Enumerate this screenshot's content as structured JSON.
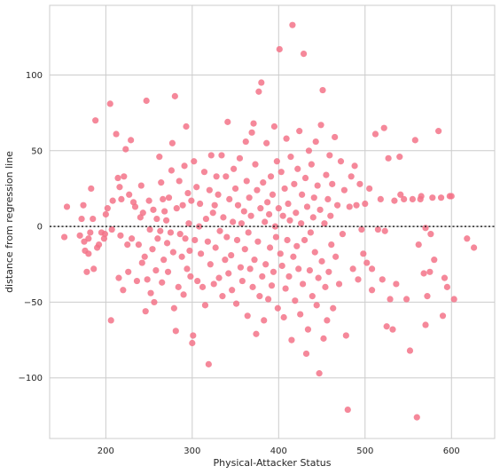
{
  "chart_data": {
    "type": "scatter",
    "title": "",
    "xlabel": "Physical-Attacker Status",
    "ylabel": "distance from regression line",
    "xlim": [
      135,
      650
    ],
    "ylim": [
      -140,
      146
    ],
    "xticks": [
      200,
      300,
      400,
      500,
      600
    ],
    "yticks": [
      -100,
      -50,
      0,
      50,
      100
    ],
    "xtick_labels": [
      "200",
      "300",
      "400",
      "500",
      "600"
    ],
    "ytick_labels": [
      "−100",
      "−50",
      "0",
      "50",
      "100"
    ],
    "grid": true,
    "reference_line": {
      "y": 0,
      "style": "dotted",
      "color": "#262626"
    },
    "point_color": "#f37388",
    "points": [
      [
        152,
        -7
      ],
      [
        155,
        13
      ],
      [
        170,
        -6
      ],
      [
        172,
        5
      ],
      [
        174,
        14
      ],
      [
        175,
        -10
      ],
      [
        176,
        -16
      ],
      [
        178,
        -30
      ],
      [
        180,
        -18
      ],
      [
        180,
        -8
      ],
      [
        182,
        -4
      ],
      [
        183,
        25
      ],
      [
        185,
        5
      ],
      [
        186,
        -28
      ],
      [
        188,
        70
      ],
      [
        190,
        -14
      ],
      [
        192,
        -12
      ],
      [
        195,
        -4
      ],
      [
        198,
        -8
      ],
      [
        199,
        -5
      ],
      [
        200,
        8
      ],
      [
        202,
        12
      ],
      [
        205,
        81
      ],
      [
        206,
        -62
      ],
      [
        207,
        -2
      ],
      [
        208,
        17
      ],
      [
        212,
        61
      ],
      [
        214,
        32
      ],
      [
        215,
        -34
      ],
      [
        216,
        26
      ],
      [
        217,
        -6
      ],
      [
        218,
        18
      ],
      [
        220,
        -42
      ],
      [
        221,
        33
      ],
      [
        223,
        51
      ],
      [
        225,
        -12
      ],
      [
        226,
        -30
      ],
      [
        227,
        21
      ],
      [
        229,
        57
      ],
      [
        230,
        -8
      ],
      [
        232,
        16
      ],
      [
        234,
        13
      ],
      [
        236,
        -36
      ],
      [
        238,
        -12
      ],
      [
        240,
        6
      ],
      [
        241,
        27
      ],
      [
        242,
        -24
      ],
      [
        243,
        9
      ],
      [
        245,
        -20
      ],
      [
        246,
        -56
      ],
      [
        247,
        83
      ],
      [
        248,
        -35
      ],
      [
        250,
        17
      ],
      [
        251,
        -2
      ],
      [
        252,
        -44
      ],
      [
        254,
        -15
      ],
      [
        255,
        11
      ],
      [
        256,
        -50
      ],
      [
        258,
        -29
      ],
      [
        259,
        5
      ],
      [
        260,
        -8
      ],
      [
        262,
        46
      ],
      [
        263,
        -3
      ],
      [
        264,
        29
      ],
      [
        265,
        -37
      ],
      [
        266,
        18
      ],
      [
        267,
        -22
      ],
      [
        268,
        10
      ],
      [
        270,
        4
      ],
      [
        271,
        -11
      ],
      [
        272,
        -30
      ],
      [
        273,
        19
      ],
      [
        275,
        -4
      ],
      [
        276,
        37
      ],
      [
        277,
        55
      ],
      [
        278,
        -17
      ],
      [
        279,
        -54
      ],
      [
        280,
        86
      ],
      [
        281,
        -69
      ],
      [
        282,
        12
      ],
      [
        284,
        -40
      ],
      [
        285,
        30
      ],
      [
        286,
        -5
      ],
      [
        288,
        -20
      ],
      [
        289,
        14
      ],
      [
        290,
        -45
      ],
      [
        291,
        40
      ],
      [
        292,
        -8
      ],
      [
        293,
        66
      ],
      [
        294,
        -28
      ],
      [
        295,
        22
      ],
      [
        296,
        2
      ],
      [
        297,
        -16
      ],
      [
        298,
        -33
      ],
      [
        299,
        17
      ],
      [
        300,
        -77
      ],
      [
        301,
        -72
      ],
      [
        302,
        43
      ],
      [
        303,
        -9
      ],
      [
        305,
        26
      ],
      [
        306,
        -36
      ],
      [
        308,
        0
      ],
      [
        309,
        15
      ],
      [
        310,
        -18
      ],
      [
        312,
        -40
      ],
      [
        314,
        36
      ],
      [
        315,
        -52
      ],
      [
        316,
        5
      ],
      [
        318,
        -10
      ],
      [
        319,
        -91
      ],
      [
        320,
        24
      ],
      [
        321,
        -25
      ],
      [
        322,
        47
      ],
      [
        324,
        9
      ],
      [
        325,
        -38
      ],
      [
        326,
        14
      ],
      [
        327,
        -14
      ],
      [
        328,
        33
      ],
      [
        330,
        21
      ],
      [
        331,
        -34
      ],
      [
        332,
        -3
      ],
      [
        334,
        47
      ],
      [
        335,
        -46
      ],
      [
        336,
        6
      ],
      [
        338,
        -22
      ],
      [
        339,
        33
      ],
      [
        340,
        -7
      ],
      [
        341,
        69
      ],
      [
        342,
        -31
      ],
      [
        343,
        18
      ],
      [
        345,
        -19
      ],
      [
        346,
        -42
      ],
      [
        347,
        3
      ],
      [
        348,
        38
      ],
      [
        350,
        25
      ],
      [
        351,
        -51
      ],
      [
        352,
        -9
      ],
      [
        353,
        14
      ],
      [
        355,
        45
      ],
      [
        356,
        -27
      ],
      [
        357,
        2
      ],
      [
        358,
        -36
      ],
      [
        360,
        10
      ],
      [
        361,
        -15
      ],
      [
        362,
        56
      ],
      [
        363,
        30
      ],
      [
        364,
        -59
      ],
      [
        365,
        -4
      ],
      [
        366,
        19
      ],
      [
        367,
        -28
      ],
      [
        368,
        7
      ],
      [
        369,
        62
      ],
      [
        370,
        -40
      ],
      [
        371,
        68
      ],
      [
        372,
        -22
      ],
      [
        373,
        41
      ],
      [
        374,
        -71
      ],
      [
        375,
        24
      ],
      [
        376,
        -10
      ],
      [
        377,
        89
      ],
      [
        378,
        -46
      ],
      [
        379,
        12
      ],
      [
        380,
        95
      ],
      [
        381,
        -33
      ],
      [
        382,
        29
      ],
      [
        383,
        -62
      ],
      [
        384,
        3
      ],
      [
        385,
        -25
      ],
      [
        386,
        55
      ],
      [
        387,
        16
      ],
      [
        388,
        -48
      ],
      [
        389,
        8
      ],
      [
        390,
        -14
      ],
      [
        391,
        33
      ],
      [
        392,
        -39
      ],
      [
        393,
        21
      ],
      [
        394,
        -30
      ],
      [
        395,
        66
      ],
      [
        396,
        0
      ],
      [
        397,
        -7
      ],
      [
        398,
        43
      ],
      [
        399,
        -54
      ],
      [
        400,
        12
      ],
      [
        401,
        117
      ],
      [
        402,
        -18
      ],
      [
        403,
        36
      ],
      [
        404,
        -26
      ],
      [
        405,
        7
      ],
      [
        406,
        -60
      ],
      [
        407,
        25
      ],
      [
        408,
        -41
      ],
      [
        409,
        58
      ],
      [
        410,
        -9
      ],
      [
        411,
        15
      ],
      [
        412,
        -33
      ],
      [
        413,
        4
      ],
      [
        414,
        46
      ],
      [
        415,
        -75
      ],
      [
        416,
        133
      ],
      [
        417,
        -20
      ],
      [
        418,
        28
      ],
      [
        419,
        -49
      ],
      [
        420,
        9
      ],
      [
        421,
        -13
      ],
      [
        422,
        38
      ],
      [
        423,
        -28
      ],
      [
        424,
        63
      ],
      [
        425,
        -58
      ],
      [
        426,
        2
      ],
      [
        427,
        21
      ],
      [
        428,
        -38
      ],
      [
        429,
        114
      ],
      [
        430,
        -9
      ],
      [
        431,
        32
      ],
      [
        432,
        -84
      ],
      [
        433,
        13
      ],
      [
        434,
        -68
      ],
      [
        435,
        50
      ],
      [
        436,
        -29
      ],
      [
        437,
        -4
      ],
      [
        438,
        41
      ],
      [
        439,
        -46
      ],
      [
        440,
        6
      ],
      [
        441,
        19
      ],
      [
        442,
        -17
      ],
      [
        443,
        56
      ],
      [
        444,
        -52
      ],
      [
        445,
        27
      ],
      [
        446,
        -34
      ],
      [
        447,
        -97
      ],
      [
        448,
        11
      ],
      [
        449,
        67
      ],
      [
        450,
        -23
      ],
      [
        451,
        90
      ],
      [
        452,
        -74
      ],
      [
        453,
        2
      ],
      [
        454,
        -40
      ],
      [
        455,
        34
      ],
      [
        456,
        -62
      ],
      [
        457,
        18
      ],
      [
        458,
        -30
      ],
      [
        459,
        47
      ],
      [
        460,
        7
      ],
      [
        461,
        -12
      ],
      [
        462,
        28
      ],
      [
        463,
        -54
      ],
      [
        465,
        59
      ],
      [
        466,
        -20
      ],
      [
        468,
        14
      ],
      [
        470,
        -38
      ],
      [
        472,
        43
      ],
      [
        474,
        -5
      ],
      [
        476,
        24
      ],
      [
        478,
        -72
      ],
      [
        480,
        -121
      ],
      [
        482,
        13
      ],
      [
        484,
        33
      ],
      [
        486,
        -28
      ],
      [
        488,
        40
      ],
      [
        490,
        14
      ],
      [
        492,
        -35
      ],
      [
        494,
        28
      ],
      [
        496,
        -2
      ],
      [
        498,
        -18
      ],
      [
        500,
        15
      ],
      [
        502,
        -24
      ],
      [
        505,
        25
      ],
      [
        508,
        -42
      ],
      [
        512,
        61
      ],
      [
        515,
        -2
      ],
      [
        518,
        18
      ],
      [
        520,
        -35
      ],
      [
        522,
        65
      ],
      [
        525,
        -66
      ],
      [
        527,
        45
      ],
      [
        529,
        -48
      ],
      [
        532,
        -68
      ],
      [
        534,
        17
      ],
      [
        536,
        -38
      ],
      [
        540,
        46
      ],
      [
        545,
        18
      ],
      [
        548,
        -48
      ],
      [
        552,
        -82
      ],
      [
        555,
        18
      ],
      [
        558,
        57
      ],
      [
        560,
        -126
      ],
      [
        562,
        -12
      ],
      [
        565,
        20
      ],
      [
        568,
        -31
      ],
      [
        570,
        -65
      ],
      [
        572,
        -46
      ],
      [
        575,
        -30
      ],
      [
        578,
        19
      ],
      [
        580,
        -22
      ],
      [
        585,
        63
      ],
      [
        588,
        19
      ],
      [
        590,
        -59
      ],
      [
        592,
        -34
      ],
      [
        595,
        -40
      ],
      [
        598,
        20
      ],
      [
        600,
        20
      ],
      [
        603,
        -48
      ],
      [
        618,
        -8
      ],
      [
        626,
        -14
      ],
      [
        570,
        -1
      ],
      [
        576,
        -5
      ],
      [
        564,
        18
      ],
      [
        541,
        21
      ],
      [
        508,
        -28
      ],
      [
        523,
        -3
      ]
    ]
  }
}
